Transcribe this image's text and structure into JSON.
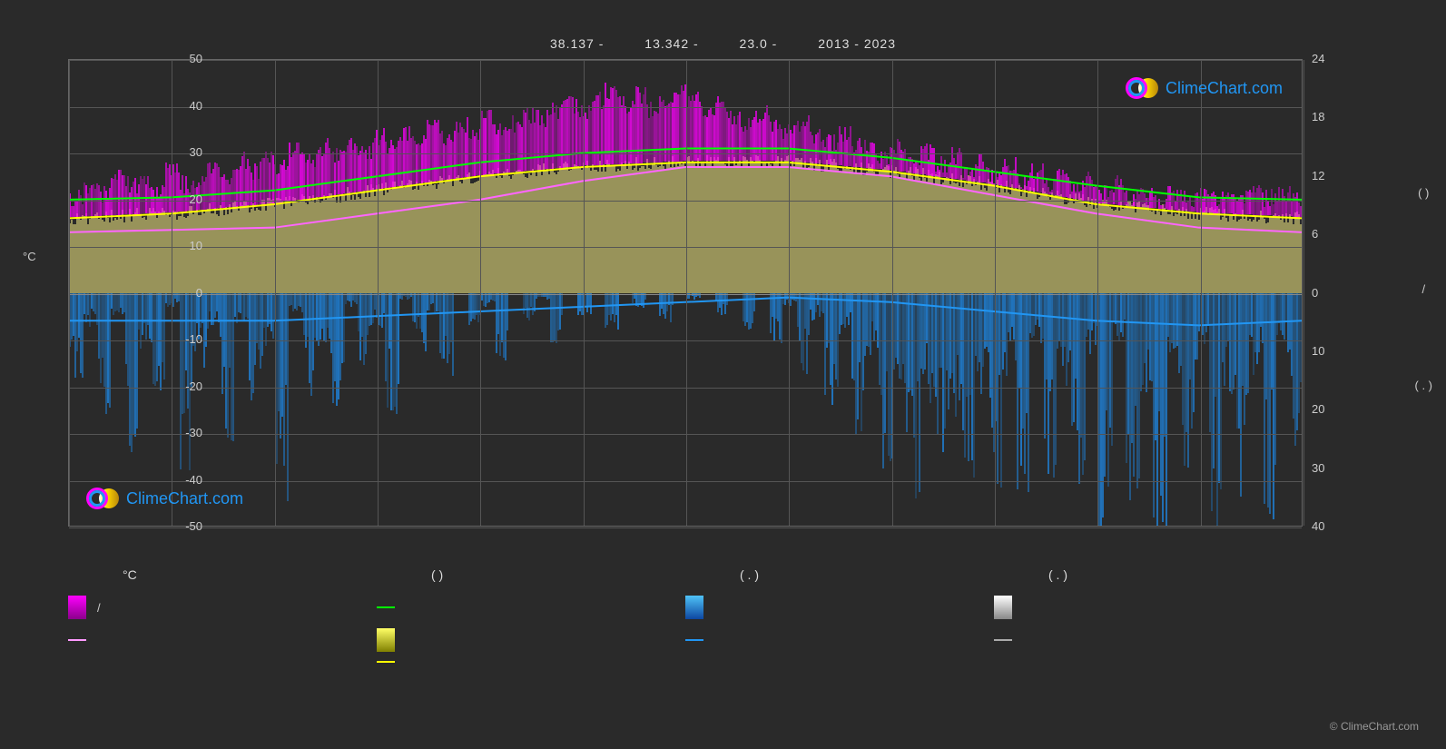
{
  "header": {
    "lat": "38.137 -",
    "lon": "13.342 -",
    "elev": "23.0 -",
    "years": "2013 - 2023"
  },
  "chart": {
    "type": "climate-chart",
    "background_color": "#2a2a2a",
    "grid_color": "#555555",
    "zero_line_color": "#888888",
    "y_left": {
      "label": "°C",
      "min": -50,
      "max": 50,
      "ticks": [
        -50,
        -40,
        -30,
        -20,
        -10,
        0,
        10,
        20,
        30,
        40,
        50
      ]
    },
    "y_right": {
      "labels_group": [
        "(   )",
        "/",
        "( . )"
      ],
      "ticks": [
        24,
        18,
        12,
        6,
        0,
        10,
        20,
        30,
        40
      ]
    },
    "x_months": 12,
    "series": {
      "temp_max_line": {
        "color": "#00ff00",
        "values": [
          20,
          20.5,
          22,
          25,
          28,
          30,
          31,
          31,
          29,
          26,
          23,
          20.5,
          20
        ]
      },
      "sun_line": {
        "color": "#ffff00",
        "values": [
          16,
          17,
          19,
          22,
          25,
          27,
          28,
          28,
          26,
          23,
          19,
          17,
          16
        ]
      },
      "temp_mean_line": {
        "color": "#ff66ff",
        "values": [
          13,
          13.5,
          14,
          17,
          20,
          24,
          27,
          27,
          25,
          21,
          17,
          14,
          13
        ]
      },
      "precip_line": {
        "color": "#2196f3",
        "values": [
          -6,
          -6,
          -6,
          -5,
          -4,
          -3,
          -2,
          -1,
          -2,
          -4,
          -6,
          -7,
          -6
        ]
      },
      "sun_fill_color": "#bdb76b",
      "temp_bar_color": "#ff00ff",
      "precip_bar_color": "#1e88e5",
      "snow_bar_color": "#ffffff"
    },
    "daily_temp_high": [
      15,
      16,
      15,
      17,
      16,
      17,
      16,
      18,
      17,
      16,
      18,
      17,
      19,
      18,
      20,
      19,
      21,
      20,
      22,
      21,
      23,
      22,
      24,
      23,
      25,
      24,
      26,
      25,
      27,
      26,
      28,
      27,
      28,
      29,
      28,
      29,
      30,
      29,
      30,
      31,
      30,
      31,
      30,
      31,
      32,
      31,
      30,
      31,
      30,
      29,
      30,
      29,
      28,
      29,
      28,
      27,
      28,
      27,
      26,
      25,
      26,
      24,
      25,
      23,
      24,
      22,
      23,
      21,
      22,
      20,
      21,
      19,
      20,
      18,
      19,
      17,
      18,
      16,
      17,
      15,
      16,
      15,
      16,
      15,
      16,
      15,
      16,
      15,
      16,
      15
    ],
    "daily_temp_max_spike": [
      20,
      22,
      21,
      25,
      23,
      24,
      22,
      26,
      23,
      24,
      26,
      25,
      28,
      26,
      29,
      27,
      30,
      28,
      31,
      29,
      32,
      30,
      33,
      31,
      34,
      32,
      35,
      33,
      36,
      34,
      37,
      35,
      36,
      38,
      37,
      39,
      40,
      38,
      41,
      43,
      40,
      42,
      39,
      40,
      43,
      41,
      38,
      40,
      37,
      36,
      38,
      35,
      34,
      36,
      33,
      32,
      34,
      31,
      30,
      29,
      31,
      28,
      30,
      27,
      29,
      26,
      28,
      25,
      27,
      24,
      26,
      23,
      25,
      22,
      24,
      21,
      23,
      20,
      22,
      19,
      21,
      20,
      21,
      20,
      21,
      20,
      21,
      20,
      21,
      20
    ],
    "daily_precip": [
      12,
      5,
      18,
      3,
      22,
      8,
      15,
      2,
      25,
      10,
      6,
      20,
      4,
      16,
      9,
      28,
      3,
      14,
      7,
      19,
      2,
      11,
      5,
      17,
      1,
      8,
      3,
      12,
      0,
      6,
      2,
      9,
      0,
      4,
      1,
      7,
      0,
      3,
      0,
      5,
      0,
      2,
      0,
      4,
      0,
      1,
      0,
      3,
      0,
      6,
      0,
      8,
      2,
      11,
      4,
      15,
      6,
      20,
      9,
      24,
      12,
      28,
      15,
      22,
      18,
      30,
      14,
      26,
      11,
      32,
      8,
      25,
      13,
      29,
      10,
      35,
      7,
      28,
      16,
      33,
      12,
      24,
      9,
      31,
      14,
      27,
      11,
      30,
      8,
      26
    ]
  },
  "legend": {
    "header": [
      "°C",
      "(       )",
      "( . )",
      "( . )"
    ],
    "items": {
      "temp_bars": {
        "type": "box-gradient",
        "color1": "#ff00ff",
        "color2": "#8b008b",
        "label": "/"
      },
      "max_line": {
        "type": "line",
        "color": "#00ff00",
        "label": ""
      },
      "precip_bars": {
        "type": "box-gradient",
        "color1": "#4fc3f7",
        "color2": "#0d47a1",
        "label": ""
      },
      "snow_bars": {
        "type": "box-gradient",
        "color1": "#ffffff",
        "color2": "#888888",
        "label": ""
      },
      "mean_line": {
        "type": "line",
        "color": "#ff99ff",
        "label": ""
      },
      "sun_fill": {
        "type": "box-gradient",
        "color1": "#ffff66",
        "color2": "#808000",
        "label": ""
      },
      "precip_line": {
        "type": "line",
        "color": "#2196f3",
        "label": ""
      },
      "snow_line": {
        "type": "line",
        "color": "#aaaaaa",
        "label": ""
      },
      "sun_line": {
        "type": "line",
        "color": "#ffff00",
        "label": ""
      }
    }
  },
  "watermark": {
    "text": "ClimeChart.com",
    "text_color": "#2196f3",
    "circle_outer": "#ff00ff",
    "circle_inner": "#2196f3"
  },
  "footer": "© ClimeChart.com"
}
